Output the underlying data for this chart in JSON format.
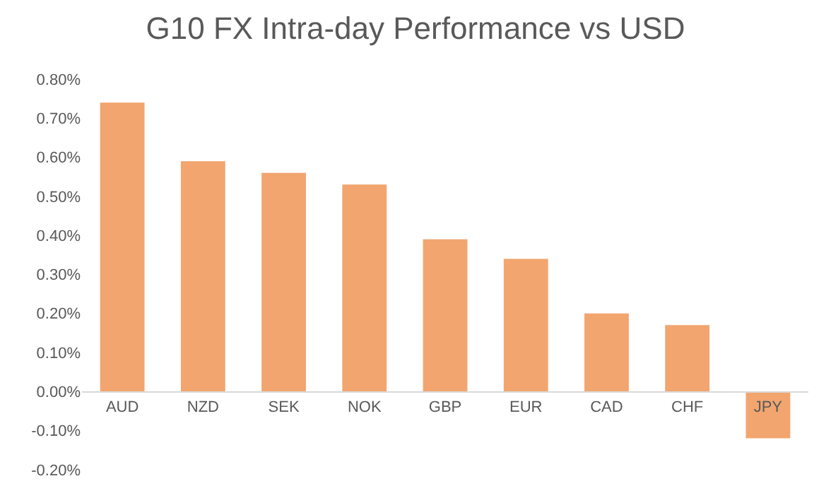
{
  "chart_data": {
    "type": "bar",
    "title": "G10 FX Intra-day Performance vs USD",
    "categories": [
      "AUD",
      "NZD",
      "SEK",
      "NOK",
      "GBP",
      "EUR",
      "CAD",
      "CHF",
      "JPY"
    ],
    "values": [
      0.74,
      0.59,
      0.56,
      0.53,
      0.39,
      0.34,
      0.2,
      0.17,
      -0.12
    ],
    "color": "#f2a56f",
    "ylim": [
      -0.2,
      0.8
    ],
    "yticks": [
      {
        "value": -0.2,
        "label": "-0.20%"
      },
      {
        "value": -0.1,
        "label": "-0.10%"
      },
      {
        "value": 0,
        "label": "0.00%"
      },
      {
        "value": 0.1,
        "label": "0.10%"
      },
      {
        "value": 0.2,
        "label": "0.20%"
      },
      {
        "value": 0.3,
        "label": "0.30%"
      },
      {
        "value": 0.4,
        "label": "0.40%"
      },
      {
        "value": 0.5,
        "label": "0.50%"
      },
      {
        "value": 0.6,
        "label": "0.60%"
      },
      {
        "value": 0.7,
        "label": "0.70%"
      },
      {
        "value": 0.8,
        "label": "0.80%"
      }
    ],
    "grid": false
  }
}
